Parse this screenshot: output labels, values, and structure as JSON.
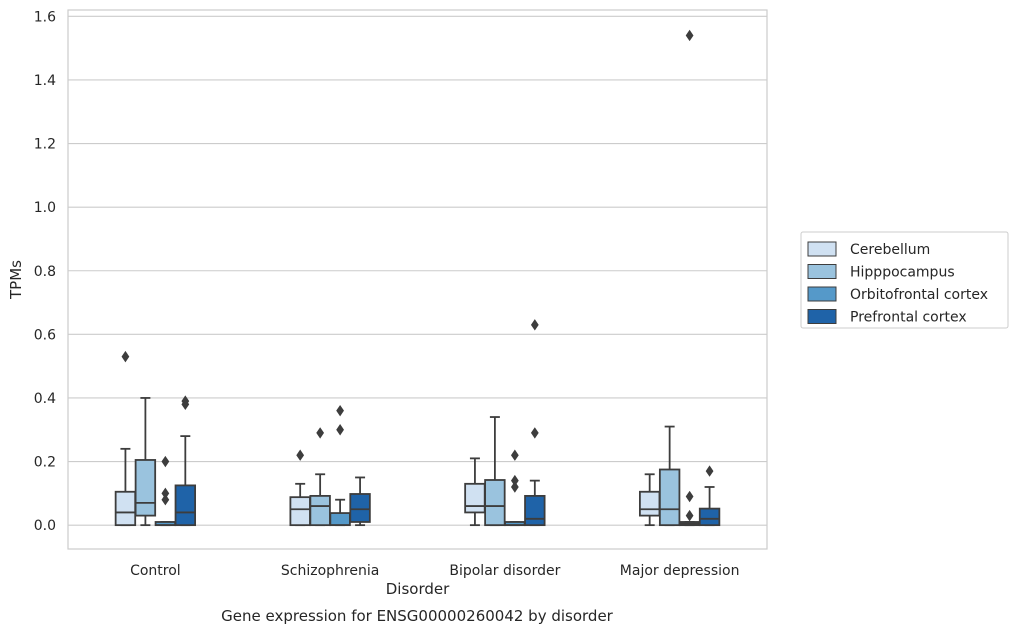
{
  "chart_data": {
    "type": "box",
    "title": "",
    "caption": "Gene expression for ENSG00000260042 by disorder",
    "xlabel": "Disorder",
    "ylabel": "TPMs",
    "ylim": [
      -0.075,
      1.62
    ],
    "yticks": [
      0.0,
      0.2,
      0.4,
      0.6,
      0.8,
      1.0,
      1.2,
      1.4,
      1.6
    ],
    "ytick_labels": [
      "0.0",
      "0.2",
      "0.4",
      "0.6",
      "0.8",
      "1.0",
      "1.2",
      "1.4",
      "1.6"
    ],
    "grid": "horizontal",
    "legend_position": "right",
    "categories": [
      "Control",
      "Schizophrenia",
      "Bipolar disorder",
      "Major depression"
    ],
    "series": [
      {
        "name": "Cerebellum",
        "color": "#d0e1f2",
        "boxes": [
          {
            "q1": 0.0,
            "median": 0.04,
            "q3": 0.105,
            "whisker_low": 0.0,
            "whisker_high": 0.24,
            "outliers": [
              0.53
            ]
          },
          {
            "q1": 0.0,
            "median": 0.05,
            "q3": 0.088,
            "whisker_low": 0.0,
            "whisker_high": 0.13,
            "outliers": [
              0.22
            ]
          },
          {
            "q1": 0.04,
            "median": 0.06,
            "q3": 0.13,
            "whisker_low": 0.0,
            "whisker_high": 0.21,
            "outliers": []
          },
          {
            "q1": 0.03,
            "median": 0.05,
            "q3": 0.105,
            "whisker_low": 0.0,
            "whisker_high": 0.16,
            "outliers": []
          }
        ]
      },
      {
        "name": "Hipppocampus",
        "color": "#9ac3de",
        "boxes": [
          {
            "q1": 0.03,
            "median": 0.07,
            "q3": 0.205,
            "whisker_low": 0.0,
            "whisker_high": 0.4,
            "outliers": []
          },
          {
            "q1": 0.0,
            "median": 0.06,
            "q3": 0.092,
            "whisker_low": 0.0,
            "whisker_high": 0.16,
            "outliers": [
              0.29
            ]
          },
          {
            "q1": 0.0,
            "median": 0.06,
            "q3": 0.142,
            "whisker_low": 0.0,
            "whisker_high": 0.34,
            "outliers": []
          },
          {
            "q1": 0.0,
            "median": 0.05,
            "q3": 0.175,
            "whisker_low": 0.0,
            "whisker_high": 0.31,
            "outliers": []
          }
        ]
      },
      {
        "name": "Orbitofrontal cortex",
        "color": "#5599c9",
        "boxes": [
          {
            "q1": 0.0,
            "median": 0.0,
            "q3": 0.01,
            "whisker_low": 0.0,
            "whisker_high": 0.01,
            "outliers": [
              0.08,
              0.1,
              0.2
            ]
          },
          {
            "q1": 0.0,
            "median": 0.0,
            "q3": 0.038,
            "whisker_low": 0.0,
            "whisker_high": 0.08,
            "outliers": [
              0.3,
              0.36
            ]
          },
          {
            "q1": 0.0,
            "median": 0.0,
            "q3": 0.01,
            "whisker_low": 0.0,
            "whisker_high": 0.01,
            "outliers": [
              0.12,
              0.14,
              0.22
            ]
          },
          {
            "q1": 0.0,
            "median": 0.005,
            "q3": 0.01,
            "whisker_low": 0.0,
            "whisker_high": 0.01,
            "outliers": [
              0.03,
              0.09,
              1.54
            ]
          }
        ]
      },
      {
        "name": "Prefrontal cortex",
        "color": "#1f63a8",
        "boxes": [
          {
            "q1": 0.0,
            "median": 0.04,
            "q3": 0.125,
            "whisker_low": 0.0,
            "whisker_high": 0.28,
            "outliers": [
              0.38,
              0.39
            ]
          },
          {
            "q1": 0.01,
            "median": 0.05,
            "q3": 0.098,
            "whisker_low": 0.0,
            "whisker_high": 0.15,
            "outliers": []
          },
          {
            "q1": 0.0,
            "median": 0.02,
            "q3": 0.092,
            "whisker_low": 0.0,
            "whisker_high": 0.14,
            "outliers": [
              0.29,
              0.63
            ]
          },
          {
            "q1": 0.0,
            "median": 0.02,
            "q3": 0.052,
            "whisker_low": 0.0,
            "whisker_high": 0.12,
            "outliers": [
              0.17
            ]
          }
        ]
      }
    ]
  }
}
